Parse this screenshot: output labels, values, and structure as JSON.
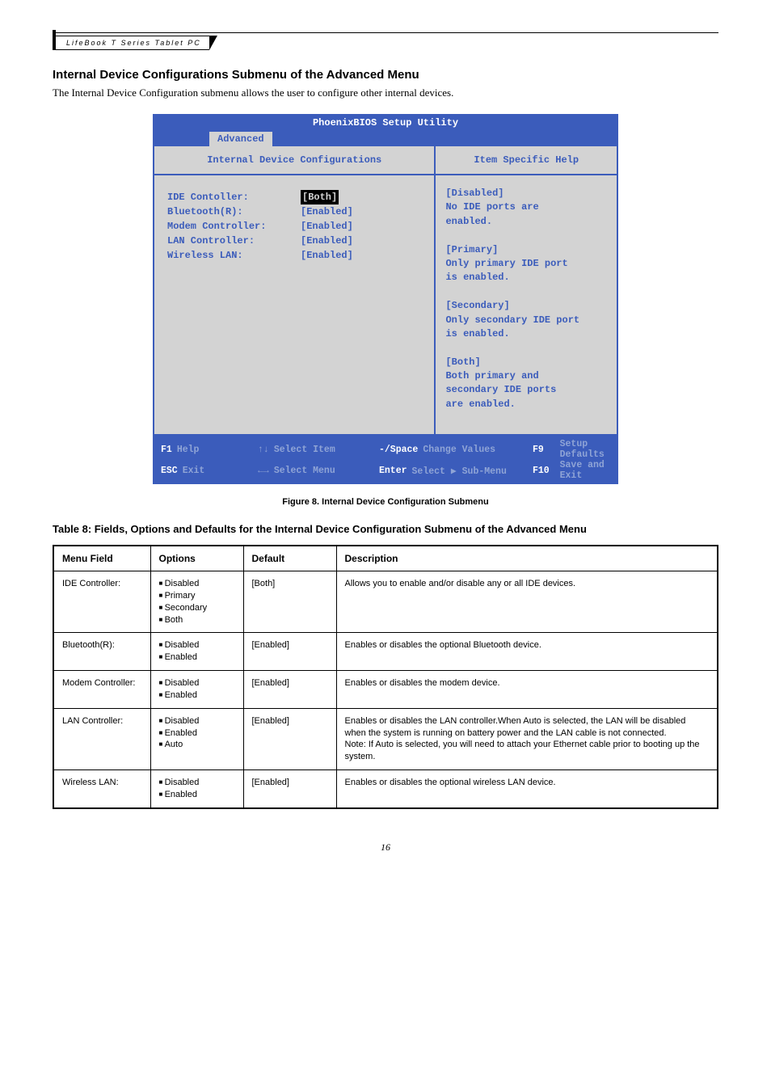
{
  "header": {
    "product": "LifeBook T Series Tablet PC"
  },
  "section": {
    "title": "Internal Device Configurations Submenu of the Advanced Menu",
    "intro": "The Internal Device Configuration submenu allows the user to configure other internal devices."
  },
  "bios": {
    "title": "PhoenixBIOS Setup Utility",
    "tab": "Advanced",
    "left_head": "Internal Device Configurations",
    "right_head": "Item Specific Help",
    "rows": [
      {
        "label": "IDE Contoller:",
        "value": "[Both]",
        "selected": true
      },
      {
        "label": "Bluetooth(R):",
        "value": "[Enabled]",
        "selected": false
      },
      {
        "label": "Modem Controller:",
        "value": "[Enabled]",
        "selected": false
      },
      {
        "label": "LAN Controller:",
        "value": "[Enabled]",
        "selected": false
      },
      {
        "label": "Wireless LAN:",
        "value": "[Enabled]",
        "selected": false
      }
    ],
    "help": "[Disabled]\nNo IDE ports are\nenabled.\n\n[Primary]\nOnly primary IDE port\nis enabled.\n\n[Secondary]\nOnly secondary IDE port\nis enabled.\n\n[Both]\nBoth primary and\nsecondary IDE ports\nare enabled.",
    "foot": {
      "r1c1k": "F1",
      "r1c1t": "Help",
      "r1c2k": "↑↓",
      "r1c2t": "Select Item",
      "r1c3k": "-/Space",
      "r1c3t": "Change Values",
      "r1c4k": "F9",
      "r1c4t": "Setup Defaults",
      "r2c1k": "ESC",
      "r2c1t": "Exit",
      "r2c2k": "←→",
      "r2c2t": "Select Menu",
      "r2c3k": "Enter",
      "r2c3t": "Select ▶ Sub-Menu",
      "r2c4k": "F10",
      "r2c4t": "Save and Exit"
    }
  },
  "fig_caption": "Figure 8.   Internal Device Configuration Submenu",
  "table_caption": "Table 8: Fields, Options and Defaults for the Internal Device Configuration Submenu of the Advanced Menu",
  "table": {
    "headers": [
      "Menu Field",
      "Options",
      "Default",
      "Description"
    ],
    "rows": [
      {
        "field": "IDE Controller:",
        "options": [
          "Disabled",
          "Primary",
          "Secondary",
          "Both"
        ],
        "default": "[Both]",
        "desc": "Allows you to enable and/or disable any or all IDE devices."
      },
      {
        "field": "Bluetooth(R):",
        "options": [
          "Disabled",
          "Enabled"
        ],
        "default": "[Enabled]",
        "desc": "Enables or disables the optional Bluetooth device."
      },
      {
        "field": "Modem Controller:",
        "options": [
          "Disabled",
          "Enabled"
        ],
        "default": "[Enabled]",
        "desc": "Enables or disables the modem device."
      },
      {
        "field": "LAN Controller:",
        "options": [
          "Disabled",
          "Enabled",
          "Auto"
        ],
        "default": "[Enabled]",
        "desc": "Enables or disables the LAN controller.When Auto is selected, the LAN will be disabled when the system is running on battery power and the LAN cable is not connected.\nNote: If Auto is selected, you will need to attach your Ethernet cable prior to booting up the system."
      },
      {
        "field": "Wireless LAN:",
        "options": [
          "Disabled",
          "Enabled"
        ],
        "default": "[Enabled]",
        "desc": "Enables or disables the optional wireless LAN device."
      }
    ]
  },
  "pagenum": "16"
}
